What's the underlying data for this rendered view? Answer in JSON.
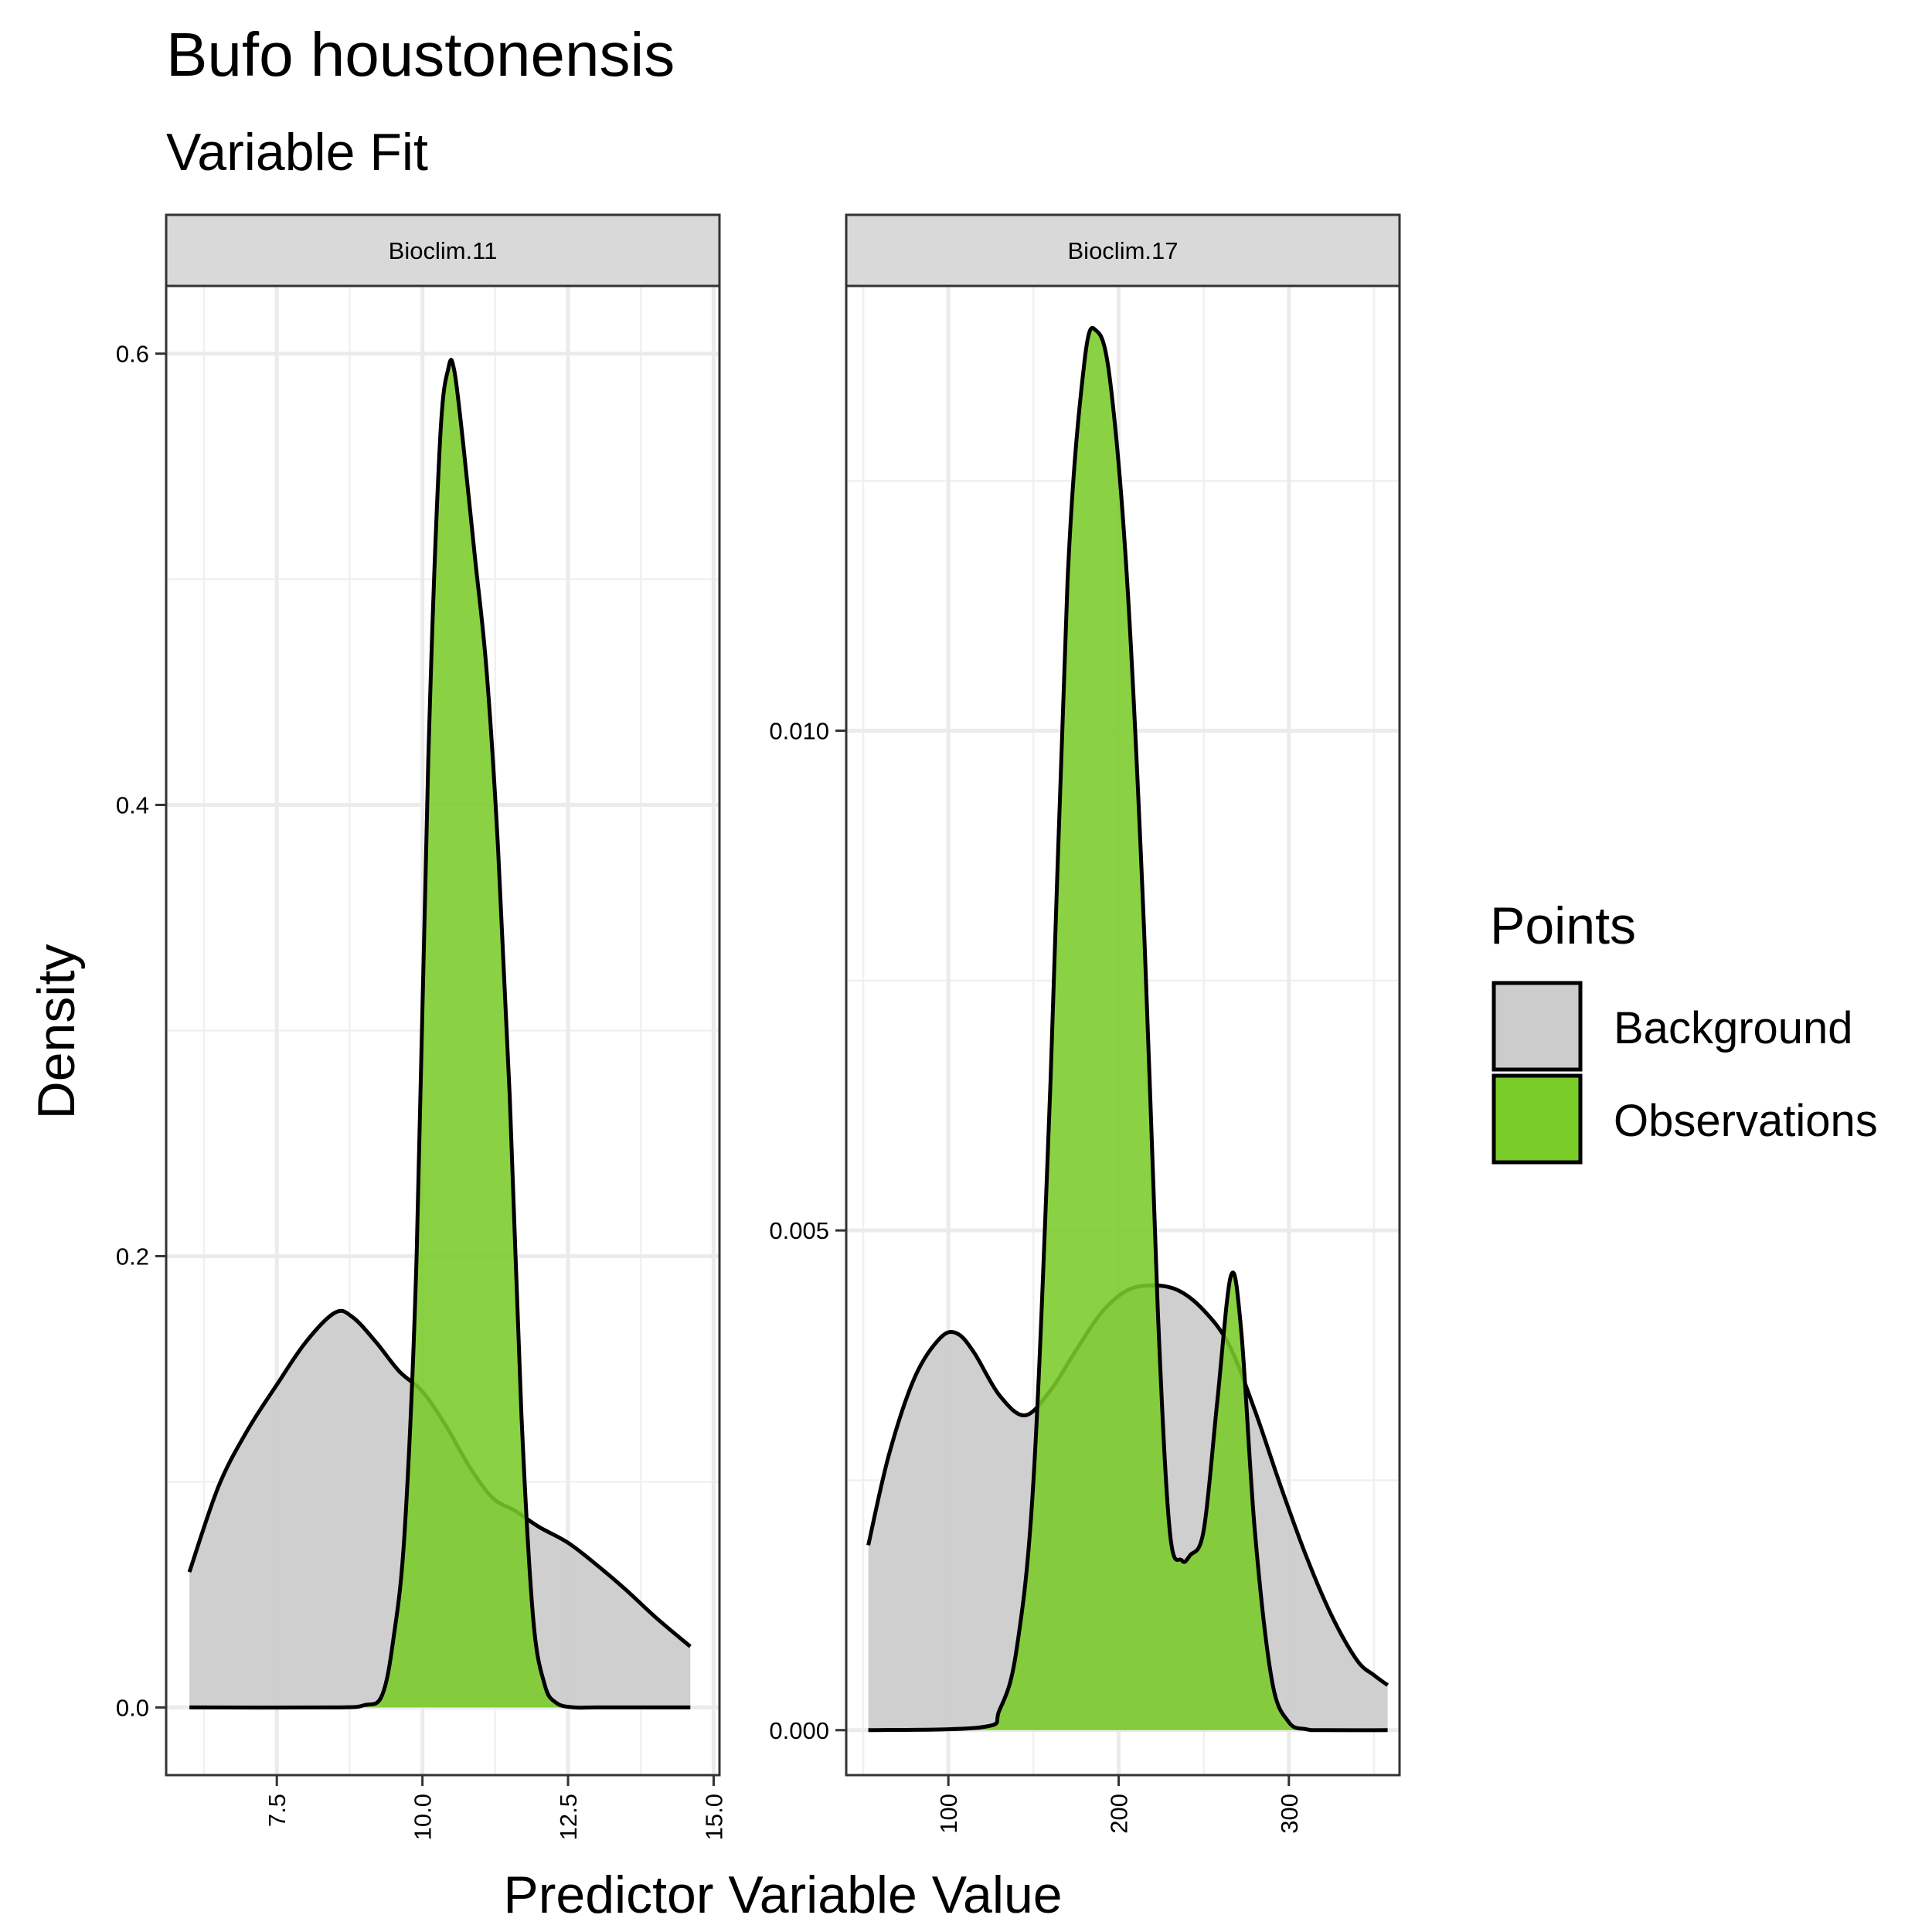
{
  "chart_data": {
    "type": "area",
    "title": "Bufo houstonensis",
    "subtitle": "Variable Fit",
    "xlabel": "Predictor Variable Value",
    "ylabel": "Density",
    "legend": {
      "title": "Points",
      "position": "right",
      "entries": [
        {
          "label": "Background",
          "color": "#cccccc"
        },
        {
          "label": "Observations",
          "color": "#7acc29"
        }
      ]
    },
    "grid": true,
    "panels": [
      {
        "strip": "Bioclim.11",
        "xlim": [
          5.6,
          15.1
        ],
        "ylim": [
          -0.03,
          0.63
        ],
        "xticks": [
          7.5,
          10.0,
          12.5,
          15.0
        ],
        "xtick_labels": [
          "7.5",
          "10.0",
          "12.5",
          "15.0"
        ],
        "yticks": [
          0.0,
          0.2,
          0.4,
          0.6
        ],
        "ytick_labels": [
          "0.0",
          "0.2",
          "0.4",
          "0.6"
        ],
        "series": [
          {
            "name": "Background",
            "x": [
              6.0,
              6.5,
              7.0,
              7.5,
              8.0,
              8.5,
              8.8,
              9.2,
              9.6,
              10.0,
              10.4,
              10.8,
              11.2,
              11.6,
              12.0,
              12.5,
              13.0,
              13.5,
              14.0,
              14.6
            ],
            "y": [
              0.06,
              0.098,
              0.123,
              0.143,
              0.162,
              0.175,
              0.173,
              0.162,
              0.149,
              0.14,
              0.125,
              0.107,
              0.093,
              0.087,
              0.08,
              0.073,
              0.063,
              0.052,
              0.04,
              0.027
            ]
          },
          {
            "name": "Observations",
            "x": [
              6.0,
              8.5,
              9.0,
              9.3,
              9.5,
              9.7,
              9.9,
              10.1,
              10.3,
              10.45,
              10.55,
              10.7,
              10.9,
              11.1,
              11.3,
              11.5,
              11.7,
              11.9,
              12.1,
              12.3,
              12.6,
              13.0,
              14.6
            ],
            "y": [
              0.0,
              0.0,
              0.001,
              0.005,
              0.03,
              0.08,
              0.2,
              0.42,
              0.56,
              0.594,
              0.592,
              0.56,
              0.51,
              0.46,
              0.38,
              0.27,
              0.13,
              0.04,
              0.01,
              0.002,
              0.0,
              0.0,
              0.0
            ]
          }
        ]
      },
      {
        "strip": "Bioclim.17",
        "xlim": [
          40,
          365
        ],
        "ylim": [
          -0.00045,
          0.01445
        ],
        "xticks": [
          100,
          200,
          300
        ],
        "xtick_labels": [
          "100",
          "200",
          "300"
        ],
        "yticks": [
          0.0,
          0.005,
          0.01
        ],
        "ytick_labels": [
          "0.000",
          "0.005",
          "0.010"
        ],
        "series": [
          {
            "name": "Background",
            "x": [
              53,
              65,
              80,
              95,
              105,
              115,
              130,
              145,
              160,
              175,
              190,
              205,
              220,
              235,
              250,
              265,
              280,
              295,
              310,
              325,
              340,
              350,
              358
            ],
            "y": [
              0.00185,
              0.00275,
              0.00352,
              0.00392,
              0.00397,
              0.00378,
              0.00335,
              0.00315,
              0.0034,
              0.0038,
              0.00418,
              0.0044,
              0.00445,
              0.0044,
              0.0042,
              0.00385,
              0.0032,
              0.00245,
              0.00175,
              0.00115,
              0.0007,
              0.00055,
              0.00045
            ]
          },
          {
            "name": "Observations",
            "x": [
              53,
              120,
              130,
              140,
              150,
              160,
              170,
              180,
              187,
              195,
              205,
              215,
              223,
              230,
              237,
              242,
              250,
              258,
              266,
              272,
              280,
              290,
              300,
              310,
              320,
              358
            ],
            "y": [
              0.0,
              3e-05,
              0.0002,
              0.0008,
              0.0025,
              0.0065,
              0.0115,
              0.0137,
              0.014,
              0.0135,
              0.0115,
              0.008,
              0.0042,
              0.002,
              0.0017,
              0.00175,
              0.002,
              0.0033,
              0.00455,
              0.004,
              0.002,
              0.0005,
              8e-05,
              1e-05,
              0.0,
              0.0
            ]
          }
        ]
      }
    ]
  }
}
